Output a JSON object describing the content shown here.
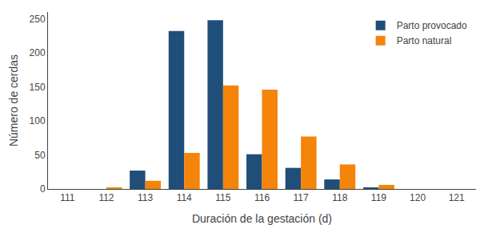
{
  "chart_data": {
    "type": "bar",
    "categories": [
      "111",
      "112",
      "113",
      "114",
      "115",
      "116",
      "117",
      "118",
      "119",
      "120",
      "121"
    ],
    "series": [
      {
        "name": "Parto provocado",
        "color": "#1F4E79",
        "values": [
          0,
          0,
          27,
          232,
          248,
          51,
          31,
          14,
          2,
          0,
          0
        ]
      },
      {
        "name": "Parto natural",
        "color": "#F4840A",
        "values": [
          0,
          2,
          12,
          53,
          152,
          146,
          77,
          36,
          6,
          0,
          0
        ]
      }
    ],
    "xlabel": "Duración de la gestación (d)",
    "ylabel": "Número de cerdas",
    "ylim": [
      0,
      260
    ],
    "yticks": [
      0,
      50,
      100,
      150,
      200,
      250
    ],
    "grid": false,
    "legend": "upper right"
  }
}
